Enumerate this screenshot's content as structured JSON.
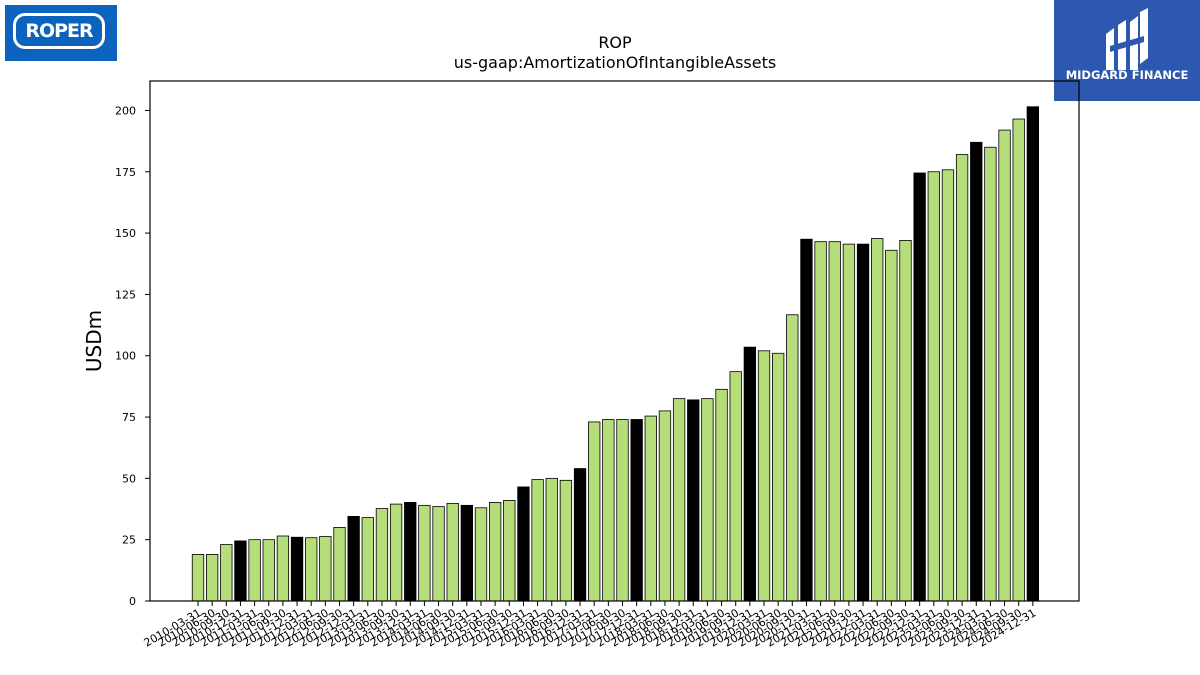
{
  "logos": {
    "left_text": "ROPER",
    "right_text": "MIDGARD FINANCE"
  },
  "colors": {
    "bar_default": "#b5de7a",
    "bar_highlight": "#000000",
    "edge": "#000000"
  },
  "chart_data": {
    "type": "bar",
    "title": "ROP",
    "subtitle": "us-gaap:AmortizationOfIntangibleAssets",
    "ylabel": "USDm",
    "xlabel": "",
    "ylim": [
      0,
      212
    ],
    "yticks": [
      0,
      25,
      50,
      75,
      100,
      125,
      150,
      175,
      200
    ],
    "grid": false,
    "categories": [
      "2010-03-31",
      "2010-06-30",
      "2010-09-30",
      "2010-12-31",
      "2011-03-31",
      "2011-06-30",
      "2011-09-30",
      "2011-12-31",
      "2012-03-31",
      "2012-06-30",
      "2012-09-30",
      "2012-12-31",
      "2013-03-31",
      "2013-06-30",
      "2013-09-30",
      "2013-12-31",
      "2014-03-31",
      "2014-06-30",
      "2014-09-30",
      "2014-12-31",
      "2015-03-31",
      "2015-06-30",
      "2015-09-30",
      "2015-12-31",
      "2016-03-31",
      "2016-06-30",
      "2016-09-30",
      "2016-12-31",
      "2017-03-31",
      "2017-06-30",
      "2017-09-30",
      "2017-12-31",
      "2018-03-31",
      "2018-06-30",
      "2018-09-30",
      "2018-12-31",
      "2019-03-31",
      "2019-06-30",
      "2019-09-30",
      "2019-12-31",
      "2020-03-31",
      "2020-06-30",
      "2020-09-30",
      "2020-12-31",
      "2021-03-31",
      "2021-06-30",
      "2021-09-30",
      "2021-12-31",
      "2022-03-31",
      "2022-06-30",
      "2022-09-30",
      "2022-12-31",
      "2023-03-31",
      "2023-06-30",
      "2023-09-30",
      "2023-12-31",
      "2024-03-31",
      "2024-06-30",
      "2024-09-30",
      "2024-12-31"
    ],
    "values": [
      19,
      19,
      23,
      24.5,
      25,
      25,
      26.5,
      26,
      25.8,
      26.3,
      30,
      34.5,
      34,
      37.7,
      39.5,
      40.2,
      39,
      38.5,
      39.8,
      39,
      38,
      40.2,
      41,
      46.5,
      49.5,
      50,
      49.2,
      54,
      73,
      74,
      74,
      74,
      75.4,
      77.5,
      82.5,
      82,
      82.5,
      86.3,
      93.5,
      103.5,
      102,
      101,
      116.7,
      147.5,
      146.5,
      146.5,
      145.5,
      145.5,
      147.8,
      143,
      147,
      174.5,
      175,
      175.8,
      182,
      187,
      185,
      192,
      196.5,
      201.5
    ],
    "highlight": [
      false,
      false,
      false,
      true,
      false,
      false,
      false,
      true,
      false,
      false,
      false,
      true,
      false,
      false,
      false,
      true,
      false,
      false,
      false,
      true,
      false,
      false,
      false,
      true,
      false,
      false,
      false,
      true,
      false,
      false,
      false,
      true,
      false,
      false,
      false,
      true,
      false,
      false,
      false,
      true,
      false,
      false,
      false,
      true,
      false,
      false,
      false,
      true,
      false,
      false,
      false,
      true,
      false,
      false,
      false,
      true,
      false,
      false,
      false,
      true
    ]
  }
}
